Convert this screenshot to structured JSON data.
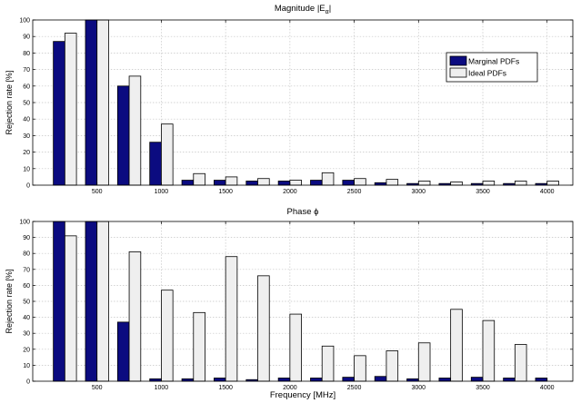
{
  "chart_data": [
    {
      "type": "bar",
      "title_main": "Magnitude  |E",
      "title_sub": "α",
      "title_end": "|",
      "xlabel": "",
      "ylabel": "Rejection rate  [%]",
      "xlim": [
        0,
        4200
      ],
      "ylim": [
        0,
        100
      ],
      "xticks": [
        500,
        1000,
        1500,
        2000,
        2500,
        3000,
        3500,
        4000
      ],
      "yticks": [
        0,
        10,
        20,
        30,
        40,
        50,
        60,
        70,
        80,
        90,
        100
      ],
      "x": [
        250,
        500,
        750,
        1000,
        1250,
        1500,
        1750,
        2000,
        2250,
        2500,
        2750,
        3000,
        3250,
        3500,
        3750,
        4000
      ],
      "legend_position": "top-right",
      "series": [
        {
          "name": "Marginal PDFs",
          "color": "#0b0b80",
          "values": [
            87,
            100,
            60,
            26,
            3,
            3,
            2.5,
            2.5,
            3,
            3,
            1.5,
            1,
            1,
            1,
            1,
            1
          ]
        },
        {
          "name": "Ideal PDFs",
          "color": "#efefef",
          "values": [
            92,
            100,
            66,
            37,
            7,
            5,
            4,
            3,
            7.5,
            4,
            3.5,
            2.5,
            2,
            2.5,
            2.5,
            2.5
          ]
        }
      ]
    },
    {
      "type": "bar",
      "title_main": "Phase  ϕ",
      "title_sub": "",
      "title_end": "",
      "xlabel": "Frequency  [MHz]",
      "ylabel": "Rejection rate  [%]",
      "xlim": [
        0,
        4200
      ],
      "ylim": [
        0,
        100
      ],
      "xticks": [
        500,
        1000,
        1500,
        2000,
        2500,
        3000,
        3500,
        4000
      ],
      "yticks": [
        0,
        10,
        20,
        30,
        40,
        50,
        60,
        70,
        80,
        90,
        100
      ],
      "x": [
        250,
        500,
        750,
        1000,
        1250,
        1500,
        1750,
        2000,
        2250,
        2500,
        2750,
        3000,
        3250,
        3500,
        3750,
        4000
      ],
      "series": [
        {
          "name": "Marginal PDFs",
          "color": "#0b0b80",
          "values": [
            100,
            100,
            37,
            1.5,
            1.5,
            2,
            1,
            2,
            2,
            2.5,
            3,
            1.5,
            2,
            2.5,
            2,
            2
          ]
        },
        {
          "name": "Ideal PDFs",
          "color": "#efefef",
          "values": [
            91,
            100,
            81,
            57,
            43,
            78,
            66,
            42,
            22,
            16,
            19,
            24,
            45,
            38,
            23,
            0
          ]
        }
      ]
    }
  ]
}
